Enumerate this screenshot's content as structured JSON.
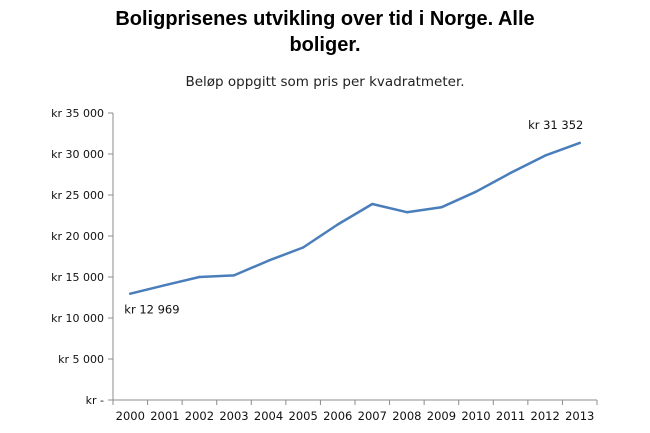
{
  "chart_data": {
    "type": "line",
    "title_lines": [
      "Boligprisenes utvikling over tid i Norge. Alle",
      "boliger."
    ],
    "subtitle": "Beløp oppgitt som pris per kvadratmeter.",
    "xlabel": "",
    "ylabel": "",
    "categories": [
      "2000",
      "2001",
      "2002",
      "2003",
      "2004",
      "2005",
      "2006",
      "2007",
      "2008",
      "2009",
      "2010",
      "2011",
      "2012",
      "2013"
    ],
    "series": [
      {
        "values": [
          12969,
          14000,
          15000,
          15200,
          17000,
          18600,
          21400,
          23900,
          22900,
          23500,
          25400,
          27700,
          29800,
          31352
        ]
      }
    ],
    "ylim": [
      0,
      35000
    ],
    "yticks": [
      0,
      5000,
      10000,
      15000,
      20000,
      25000,
      30000,
      35000
    ],
    "ytick_labels": [
      "kr -",
      "kr 5 000",
      "kr 10 000",
      "kr 15 000",
      "kr 20 000",
      "kr 25 000",
      "kr 30 000",
      "kr 35 000"
    ],
    "data_labels": [
      {
        "index": 0,
        "text": "kr 12 969"
      },
      {
        "index": 13,
        "text": "kr 31 352"
      }
    ],
    "grid": false,
    "legend": "none",
    "line_color": "#4a7ebb",
    "axis_color": "#8c8c8c"
  }
}
